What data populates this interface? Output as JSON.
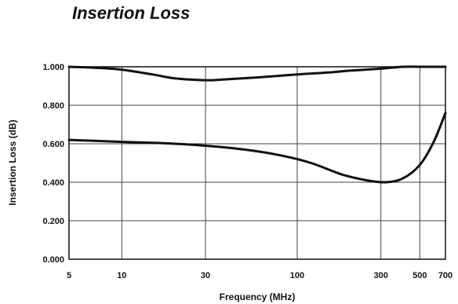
{
  "page": {
    "title": "Insertion Loss"
  },
  "chart_data": {
    "type": "line",
    "title": "Insertion Loss",
    "xlabel": "Frequency (MHz)",
    "ylabel": "Insertion Loss (dB)",
    "x_scale": "log",
    "xlim": [
      5,
      700
    ],
    "ylim": [
      0,
      1.0
    ],
    "x_ticks": [
      5,
      10,
      30,
      100,
      300,
      500,
      700
    ],
    "x_tick_labels": [
      "5",
      "10",
      "30",
      "100",
      "300",
      "500",
      "700"
    ],
    "y_ticks": [
      0,
      0.2,
      0.4,
      0.6,
      0.8,
      1.0
    ],
    "y_tick_labels": [
      "0.000",
      "0.200",
      "0.400",
      "0.600",
      "0.800",
      "1.000"
    ],
    "grid": true,
    "series": [
      {
        "x": [
          5,
          7,
          10,
          15,
          20,
          30,
          40,
          60,
          100,
          150,
          200,
          300,
          400,
          500,
          600,
          700
        ],
        "values": [
          1.0,
          0.995,
          0.985,
          0.96,
          0.94,
          0.93,
          0.935,
          0.945,
          0.96,
          0.97,
          0.98,
          0.99,
          1.0,
          1.0,
          1.0,
          1.0
        ],
        "color": "#111111"
      },
      {
        "x": [
          5,
          7,
          10,
          15,
          20,
          30,
          50,
          80,
          120,
          180,
          250,
          320,
          400,
          500,
          600,
          700
        ],
        "values": [
          0.62,
          0.615,
          0.61,
          0.605,
          0.6,
          0.59,
          0.57,
          0.54,
          0.5,
          0.44,
          0.41,
          0.4,
          0.42,
          0.49,
          0.61,
          0.76
        ],
        "color": "#111111"
      }
    ]
  }
}
